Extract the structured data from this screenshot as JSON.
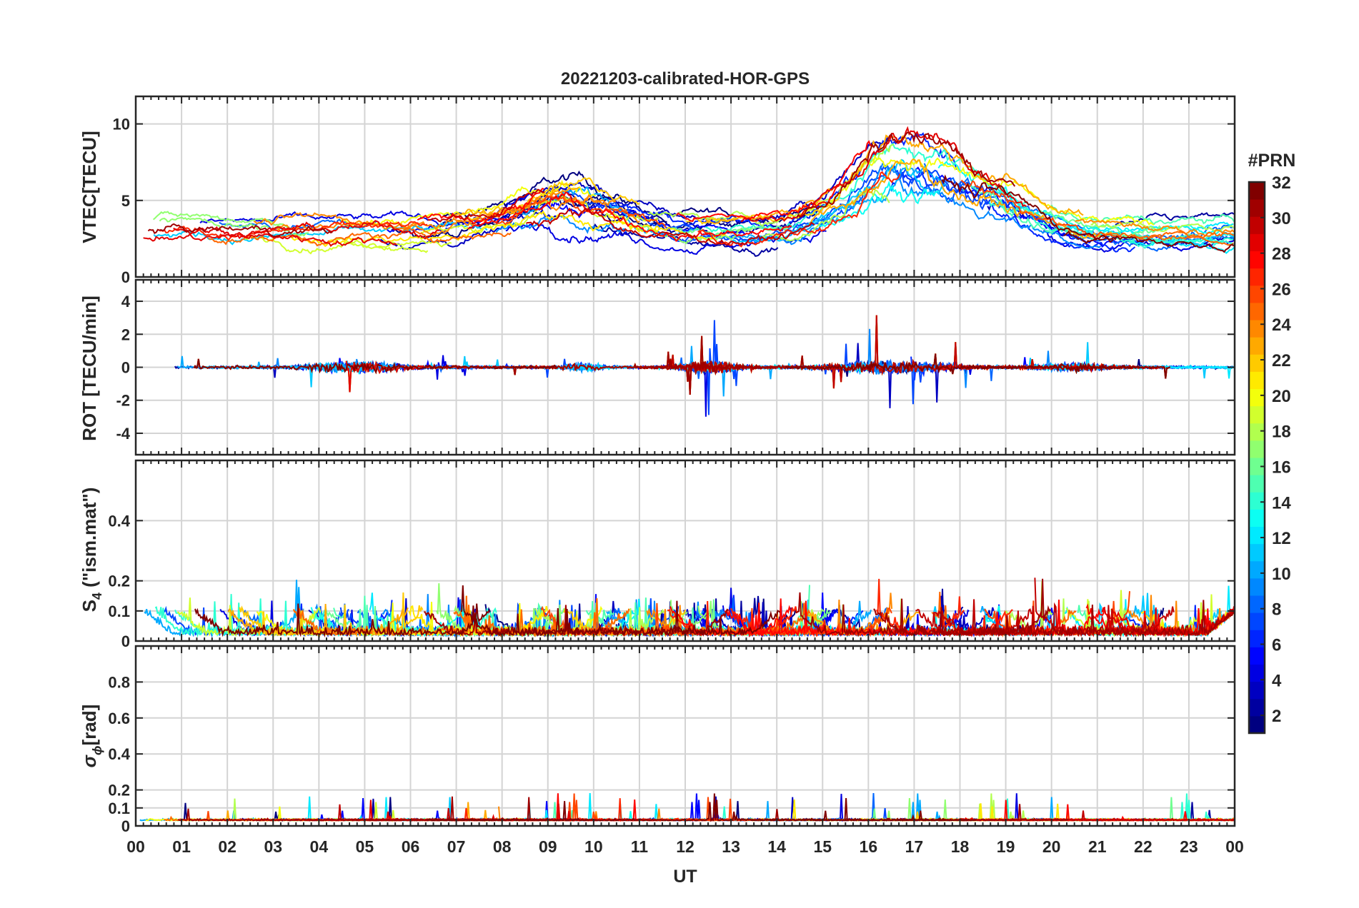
{
  "figure": {
    "title": "20221203-calibrated-HOR-GPS",
    "xlabel": "UT",
    "xticks": [
      "00",
      "01",
      "02",
      "03",
      "04",
      "05",
      "06",
      "07",
      "08",
      "09",
      "10",
      "11",
      "12",
      "13",
      "14",
      "15",
      "16",
      "17",
      "18",
      "19",
      "20",
      "21",
      "22",
      "23",
      "00"
    ]
  },
  "colorbar": {
    "label": "#PRN",
    "ticks": [
      "2",
      "4",
      "6",
      "8",
      "10",
      "12",
      "14",
      "16",
      "18",
      "20",
      "22",
      "24",
      "26",
      "28",
      "30",
      "32"
    ],
    "range": [
      1,
      32
    ]
  },
  "chart_data": [
    {
      "type": "line",
      "panel": "vtec",
      "ylabel": "VTEC[TECU]",
      "ylim": [
        0,
        11.8
      ],
      "yticks": [
        "0",
        "5",
        "10"
      ],
      "xlim": [
        0,
        24
      ],
      "series_count": 32
    },
    {
      "type": "line",
      "panel": "rot",
      "ylabel": "ROT [TECU/min]",
      "ylim": [
        -5.3,
        5.3
      ],
      "yticks": [
        "-4",
        "-2",
        "0",
        "2",
        "4"
      ],
      "xlim": [
        0,
        24
      ],
      "series_count": 32
    },
    {
      "type": "line",
      "panel": "s4",
      "ylabel_main": "S",
      "ylabel_sub": "4",
      "ylabel_rest": " (\"ism.mat\")",
      "ylim": [
        0,
        0.6
      ],
      "yticks": [
        "0",
        "0.1",
        "0.2",
        "0.4"
      ],
      "xlim": [
        0,
        24
      ],
      "series_count": 32
    },
    {
      "type": "line",
      "panel": "sigma",
      "ylabel_main": "σ",
      "ylabel_sub": "ϕ",
      "ylabel_rest": "[rad]",
      "ylim": [
        0,
        1.0
      ],
      "yticks": [
        "0",
        "0.1",
        "0.2",
        "0.4",
        "0.6",
        "0.8"
      ],
      "xlim": [
        0,
        24
      ],
      "series_count": 32
    }
  ]
}
